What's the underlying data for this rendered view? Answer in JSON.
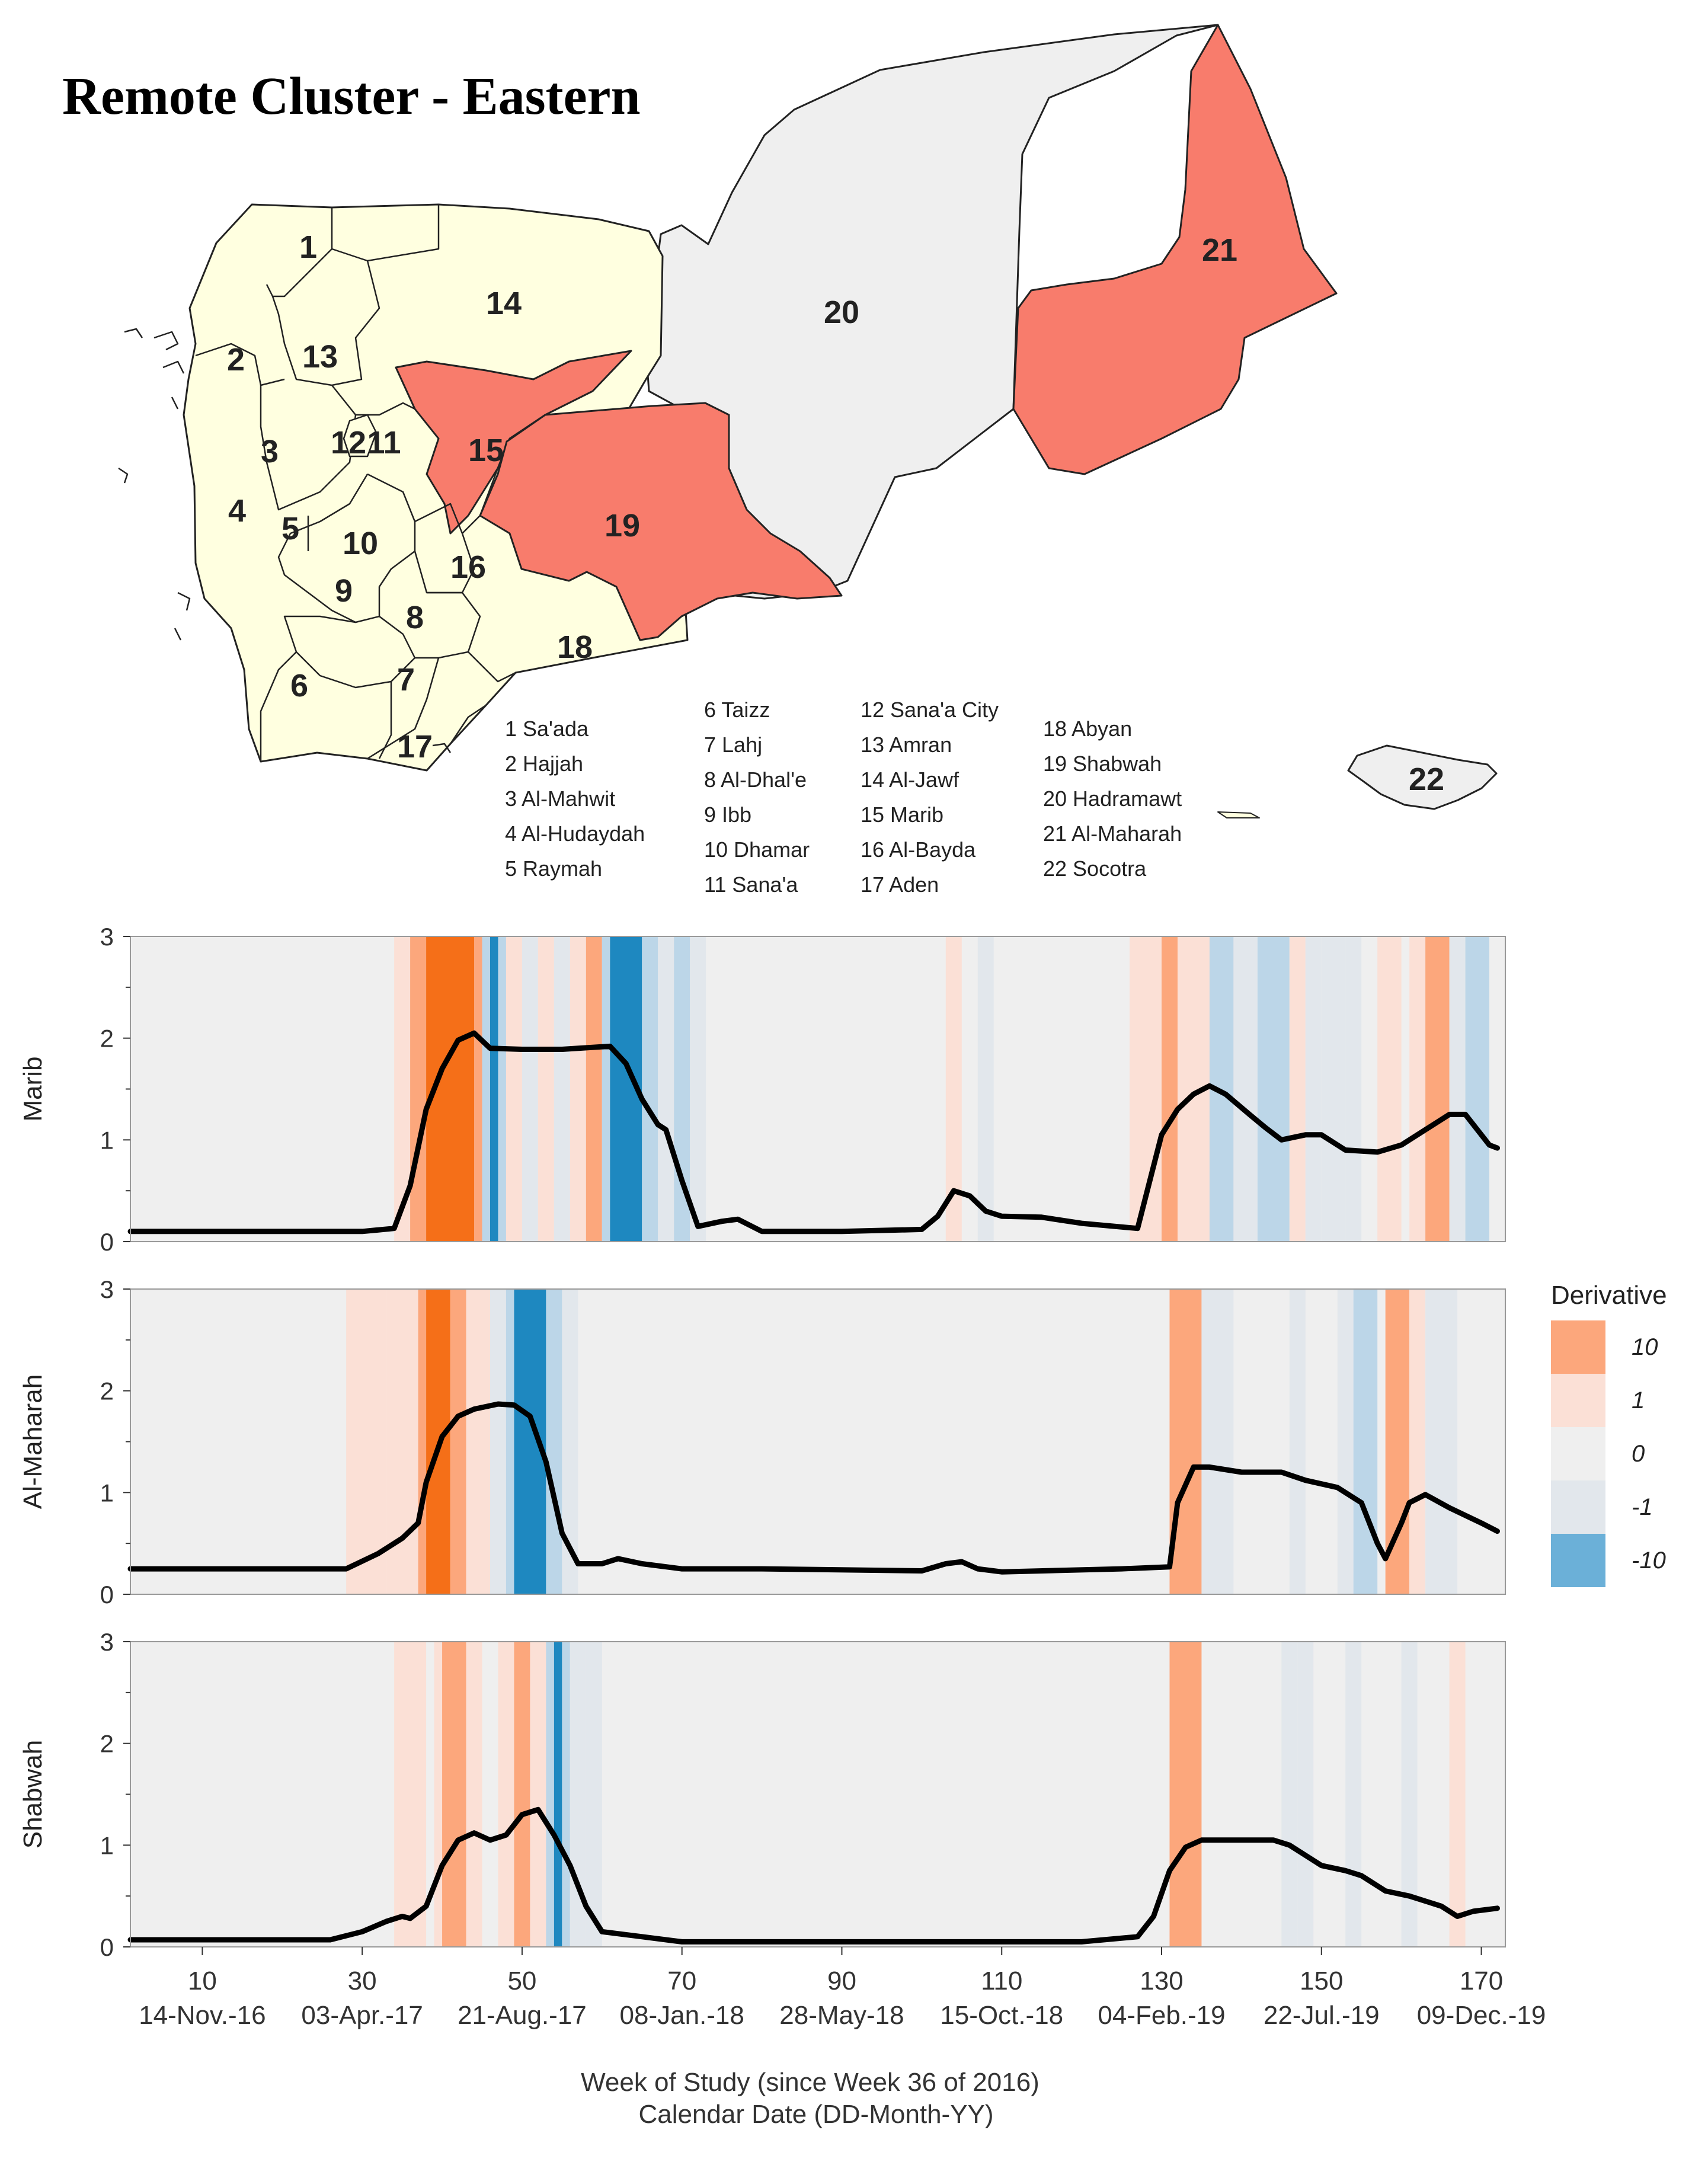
{
  "title": "Remote Cluster - Eastern",
  "colors": {
    "highlight": "#f87c6c",
    "base": "#ffffe0",
    "other": "#efefef",
    "border": "#222222",
    "panel_bg": "#efefef",
    "pos_strong": "#f56f18",
    "pos_mid": "#fca77c",
    "pos_light": "#fbe0d6",
    "neg_light": "#e2e7ec",
    "neg_mid": "#bcd6e8",
    "neg_strong": "#1e88c0",
    "line": "#000000"
  },
  "map": {
    "highlighted_regions": [
      15,
      19,
      21
    ],
    "other_region": 20,
    "region_labels": [
      "1",
      "2",
      "3",
      "4",
      "5",
      "6",
      "7",
      "8",
      "9",
      "10",
      "11",
      "12",
      "13",
      "14",
      "15",
      "16",
      "17",
      "18",
      "19",
      "20",
      "21",
      "22"
    ],
    "legend": [
      [
        "1 Sa'ada",
        "2 Hajjah",
        "3 Al-Mahwit",
        "4 Al-Hudaydah",
        "5 Raymah"
      ],
      [
        "6 Taizz",
        "7 Lahj",
        "8   Al-Dhal'e",
        "9   Ibb",
        "10 Dhamar",
        "11 Sana'a"
      ],
      [
        "12 Sana'a City",
        "13 Amran",
        "14 Al-Jawf",
        "15 Marib",
        "16 Al-Bayda",
        "17 Aden"
      ],
      [
        "18 Abyan",
        "19 Shabwah",
        "20 Hadramawt",
        "21 Al-Maharah",
        "22 Socotra"
      ]
    ]
  },
  "chart_data": {
    "type": "line",
    "xlabel": "Week of Study (since Week 36 of 2016)",
    "xlabel2": "Calendar Date (DD-Month-YY)",
    "xlim": [
      1,
      173
    ],
    "ylim": [
      0,
      3
    ],
    "x_ticks": [
      10,
      30,
      50,
      70,
      90,
      110,
      130,
      150,
      170
    ],
    "x_date_labels": [
      "14-Nov.-16",
      "03-Apr.-17",
      "21-Aug.-17",
      "08-Jan.-18",
      "28-May-18",
      "15-Oct.-18",
      "04-Feb.-19",
      "22-Jul.-19",
      "09-Dec.-19"
    ],
    "y_ticks": [
      0,
      1,
      2,
      3
    ],
    "legend": {
      "title": "Derivative",
      "entries": [
        "10",
        "1",
        "0",
        "-1",
        "-10"
      ],
      "position": "right"
    },
    "panels": [
      {
        "name": "Marib",
        "x": [
          1,
          30,
          34,
          36,
          38,
          40,
          42,
          44,
          46,
          50,
          55,
          61,
          63,
          65,
          67,
          68,
          70,
          72,
          75,
          77,
          80,
          90,
          100,
          102,
          104,
          106,
          108,
          110,
          115,
          120,
          127,
          130,
          132,
          134,
          136,
          138,
          141,
          143,
          145,
          148,
          150,
          153,
          157,
          160,
          163,
          166,
          168,
          171,
          172
        ],
        "values": [
          0.1,
          0.1,
          0.13,
          0.55,
          1.3,
          1.7,
          1.98,
          2.05,
          1.9,
          1.89,
          1.89,
          1.92,
          1.75,
          1.4,
          1.15,
          1.1,
          0.6,
          0.15,
          0.2,
          0.22,
          0.1,
          0.1,
          0.12,
          0.25,
          0.5,
          0.45,
          0.3,
          0.25,
          0.24,
          0.18,
          0.13,
          1.05,
          1.3,
          1.45,
          1.53,
          1.45,
          1.25,
          1.12,
          1.0,
          1.05,
          1.05,
          0.9,
          0.88,
          0.95,
          1.1,
          1.25,
          1.25,
          0.95,
          0.92
        ],
        "derivative_bands": [
          {
            "from": 34,
            "to": 36,
            "level": "1"
          },
          {
            "from": 36,
            "to": 38,
            "level": "2"
          },
          {
            "from": 38,
            "to": 44,
            "level": "10"
          },
          {
            "from": 44,
            "to": 45,
            "level": "2"
          },
          {
            "from": 45,
            "to": 46,
            "level": "-2"
          },
          {
            "from": 46,
            "to": 47,
            "level": "-10"
          },
          {
            "from": 47,
            "to": 48,
            "level": "-2"
          },
          {
            "from": 48,
            "to": 50,
            "level": "1"
          },
          {
            "from": 50,
            "to": 52,
            "level": "-1"
          },
          {
            "from": 52,
            "to": 54,
            "level": "1"
          },
          {
            "from": 54,
            "to": 56,
            "level": "-1"
          },
          {
            "from": 56,
            "to": 58,
            "level": "1"
          },
          {
            "from": 58,
            "to": 60,
            "level": "2"
          },
          {
            "from": 60,
            "to": 61,
            "level": "-2"
          },
          {
            "from": 61,
            "to": 65,
            "level": "-10"
          },
          {
            "from": 65,
            "to": 67,
            "level": "-2"
          },
          {
            "from": 67,
            "to": 69,
            "level": "-1"
          },
          {
            "from": 69,
            "to": 71,
            "level": "-2"
          },
          {
            "from": 71,
            "to": 73,
            "level": "-1"
          },
          {
            "from": 103,
            "to": 105,
            "level": "1"
          },
          {
            "from": 107,
            "to": 109,
            "level": "-1"
          },
          {
            "from": 126,
            "to": 130,
            "level": "1"
          },
          {
            "from": 130,
            "to": 132,
            "level": "2"
          },
          {
            "from": 132,
            "to": 136,
            "level": "1"
          },
          {
            "from": 136,
            "to": 139,
            "level": "-2"
          },
          {
            "from": 139,
            "to": 142,
            "level": "-1"
          },
          {
            "from": 142,
            "to": 146,
            "level": "-2"
          },
          {
            "from": 146,
            "to": 148,
            "level": "1"
          },
          {
            "from": 148,
            "to": 150,
            "level": "-1"
          },
          {
            "from": 150,
            "to": 153,
            "level": "-1"
          },
          {
            "from": 153,
            "to": 155,
            "level": "-1"
          },
          {
            "from": 157,
            "to": 160,
            "level": "1"
          },
          {
            "from": 161,
            "to": 163,
            "level": "1"
          },
          {
            "from": 163,
            "to": 166,
            "level": "2"
          },
          {
            "from": 166,
            "to": 168,
            "level": "-1"
          },
          {
            "from": 168,
            "to": 171,
            "level": "-2"
          }
        ]
      },
      {
        "name": "Al-Maharah",
        "x": [
          1,
          28,
          32,
          35,
          37,
          38,
          40,
          42,
          44,
          47,
          49,
          51,
          53,
          55,
          57,
          60,
          62,
          65,
          70,
          80,
          100,
          103,
          105,
          107,
          110,
          125,
          131,
          132,
          134,
          136,
          140,
          145,
          148,
          152,
          155,
          157,
          158,
          160,
          161,
          163,
          166,
          170,
          172
        ],
        "values": [
          0.25,
          0.25,
          0.4,
          0.55,
          0.7,
          1.1,
          1.55,
          1.75,
          1.82,
          1.87,
          1.86,
          1.75,
          1.3,
          0.6,
          0.3,
          0.3,
          0.35,
          0.3,
          0.25,
          0.25,
          0.23,
          0.3,
          0.32,
          0.25,
          0.22,
          0.25,
          0.27,
          0.9,
          1.25,
          1.25,
          1.2,
          1.2,
          1.12,
          1.05,
          0.9,
          0.5,
          0.35,
          0.7,
          0.9,
          0.98,
          0.85,
          0.7,
          0.62
        ],
        "derivative_bands": [
          {
            "from": 28,
            "to": 33,
            "level": "1"
          },
          {
            "from": 33,
            "to": 37,
            "level": "1"
          },
          {
            "from": 37,
            "to": 38,
            "level": "2"
          },
          {
            "from": 38,
            "to": 41,
            "level": "10"
          },
          {
            "from": 41,
            "to": 43,
            "level": "2"
          },
          {
            "from": 43,
            "to": 46,
            "level": "1"
          },
          {
            "from": 46,
            "to": 48,
            "level": "-1"
          },
          {
            "from": 48,
            "to": 49,
            "level": "-2"
          },
          {
            "from": 49,
            "to": 53,
            "level": "-10"
          },
          {
            "from": 53,
            "to": 55,
            "level": "-2"
          },
          {
            "from": 55,
            "to": 57,
            "level": "-1"
          },
          {
            "from": 131,
            "to": 135,
            "level": "2"
          },
          {
            "from": 135,
            "to": 139,
            "level": "-1"
          },
          {
            "from": 146,
            "to": 148,
            "level": "-1"
          },
          {
            "from": 152,
            "to": 154,
            "level": "-1"
          },
          {
            "from": 154,
            "to": 157,
            "level": "-2"
          },
          {
            "from": 158,
            "to": 161,
            "level": "2"
          },
          {
            "from": 161,
            "to": 163,
            "level": "1"
          },
          {
            "from": 163,
            "to": 167,
            "level": "-1"
          }
        ]
      },
      {
        "name": "Shabwah",
        "x": [
          1,
          26,
          30,
          33,
          35,
          36,
          38,
          40,
          42,
          44,
          46,
          48,
          50,
          52,
          54,
          56,
          58,
          60,
          65,
          70,
          100,
          120,
          127,
          129,
          131,
          133,
          135,
          138,
          142,
          144,
          146,
          148,
          150,
          153,
          155,
          158,
          161,
          165,
          167,
          169,
          172
        ],
        "values": [
          0.07,
          0.07,
          0.15,
          0.25,
          0.3,
          0.28,
          0.4,
          0.8,
          1.05,
          1.12,
          1.05,
          1.1,
          1.3,
          1.35,
          1.1,
          0.8,
          0.4,
          0.15,
          0.1,
          0.05,
          0.05,
          0.05,
          0.1,
          0.3,
          0.75,
          0.98,
          1.05,
          1.05,
          1.05,
          1.05,
          1.0,
          0.9,
          0.8,
          0.75,
          0.7,
          0.55,
          0.5,
          0.4,
          0.3,
          0.35,
          0.38
        ],
        "derivative_bands": [
          {
            "from": 34,
            "to": 38,
            "level": "1"
          },
          {
            "from": 39,
            "to": 40,
            "level": "1"
          },
          {
            "from": 40,
            "to": 43,
            "level": "2"
          },
          {
            "from": 43,
            "to": 45,
            "level": "1"
          },
          {
            "from": 47,
            "to": 49,
            "level": "1"
          },
          {
            "from": 49,
            "to": 51,
            "level": "2"
          },
          {
            "from": 51,
            "to": 53,
            "level": "1"
          },
          {
            "from": 53,
            "to": 54,
            "level": "-2"
          },
          {
            "from": 54,
            "to": 55,
            "level": "-10"
          },
          {
            "from": 55,
            "to": 56,
            "level": "-2"
          },
          {
            "from": 56,
            "to": 58,
            "level": "-1"
          },
          {
            "from": 58,
            "to": 60,
            "level": "-1"
          },
          {
            "from": 131,
            "to": 135,
            "level": "2"
          },
          {
            "from": 145,
            "to": 147,
            "level": "-1"
          },
          {
            "from": 147,
            "to": 149,
            "level": "-1"
          },
          {
            "from": 153,
            "to": 155,
            "level": "-1"
          },
          {
            "from": 160,
            "to": 162,
            "level": "-1"
          },
          {
            "from": 166,
            "to": 168,
            "level": "1"
          }
        ]
      }
    ]
  }
}
